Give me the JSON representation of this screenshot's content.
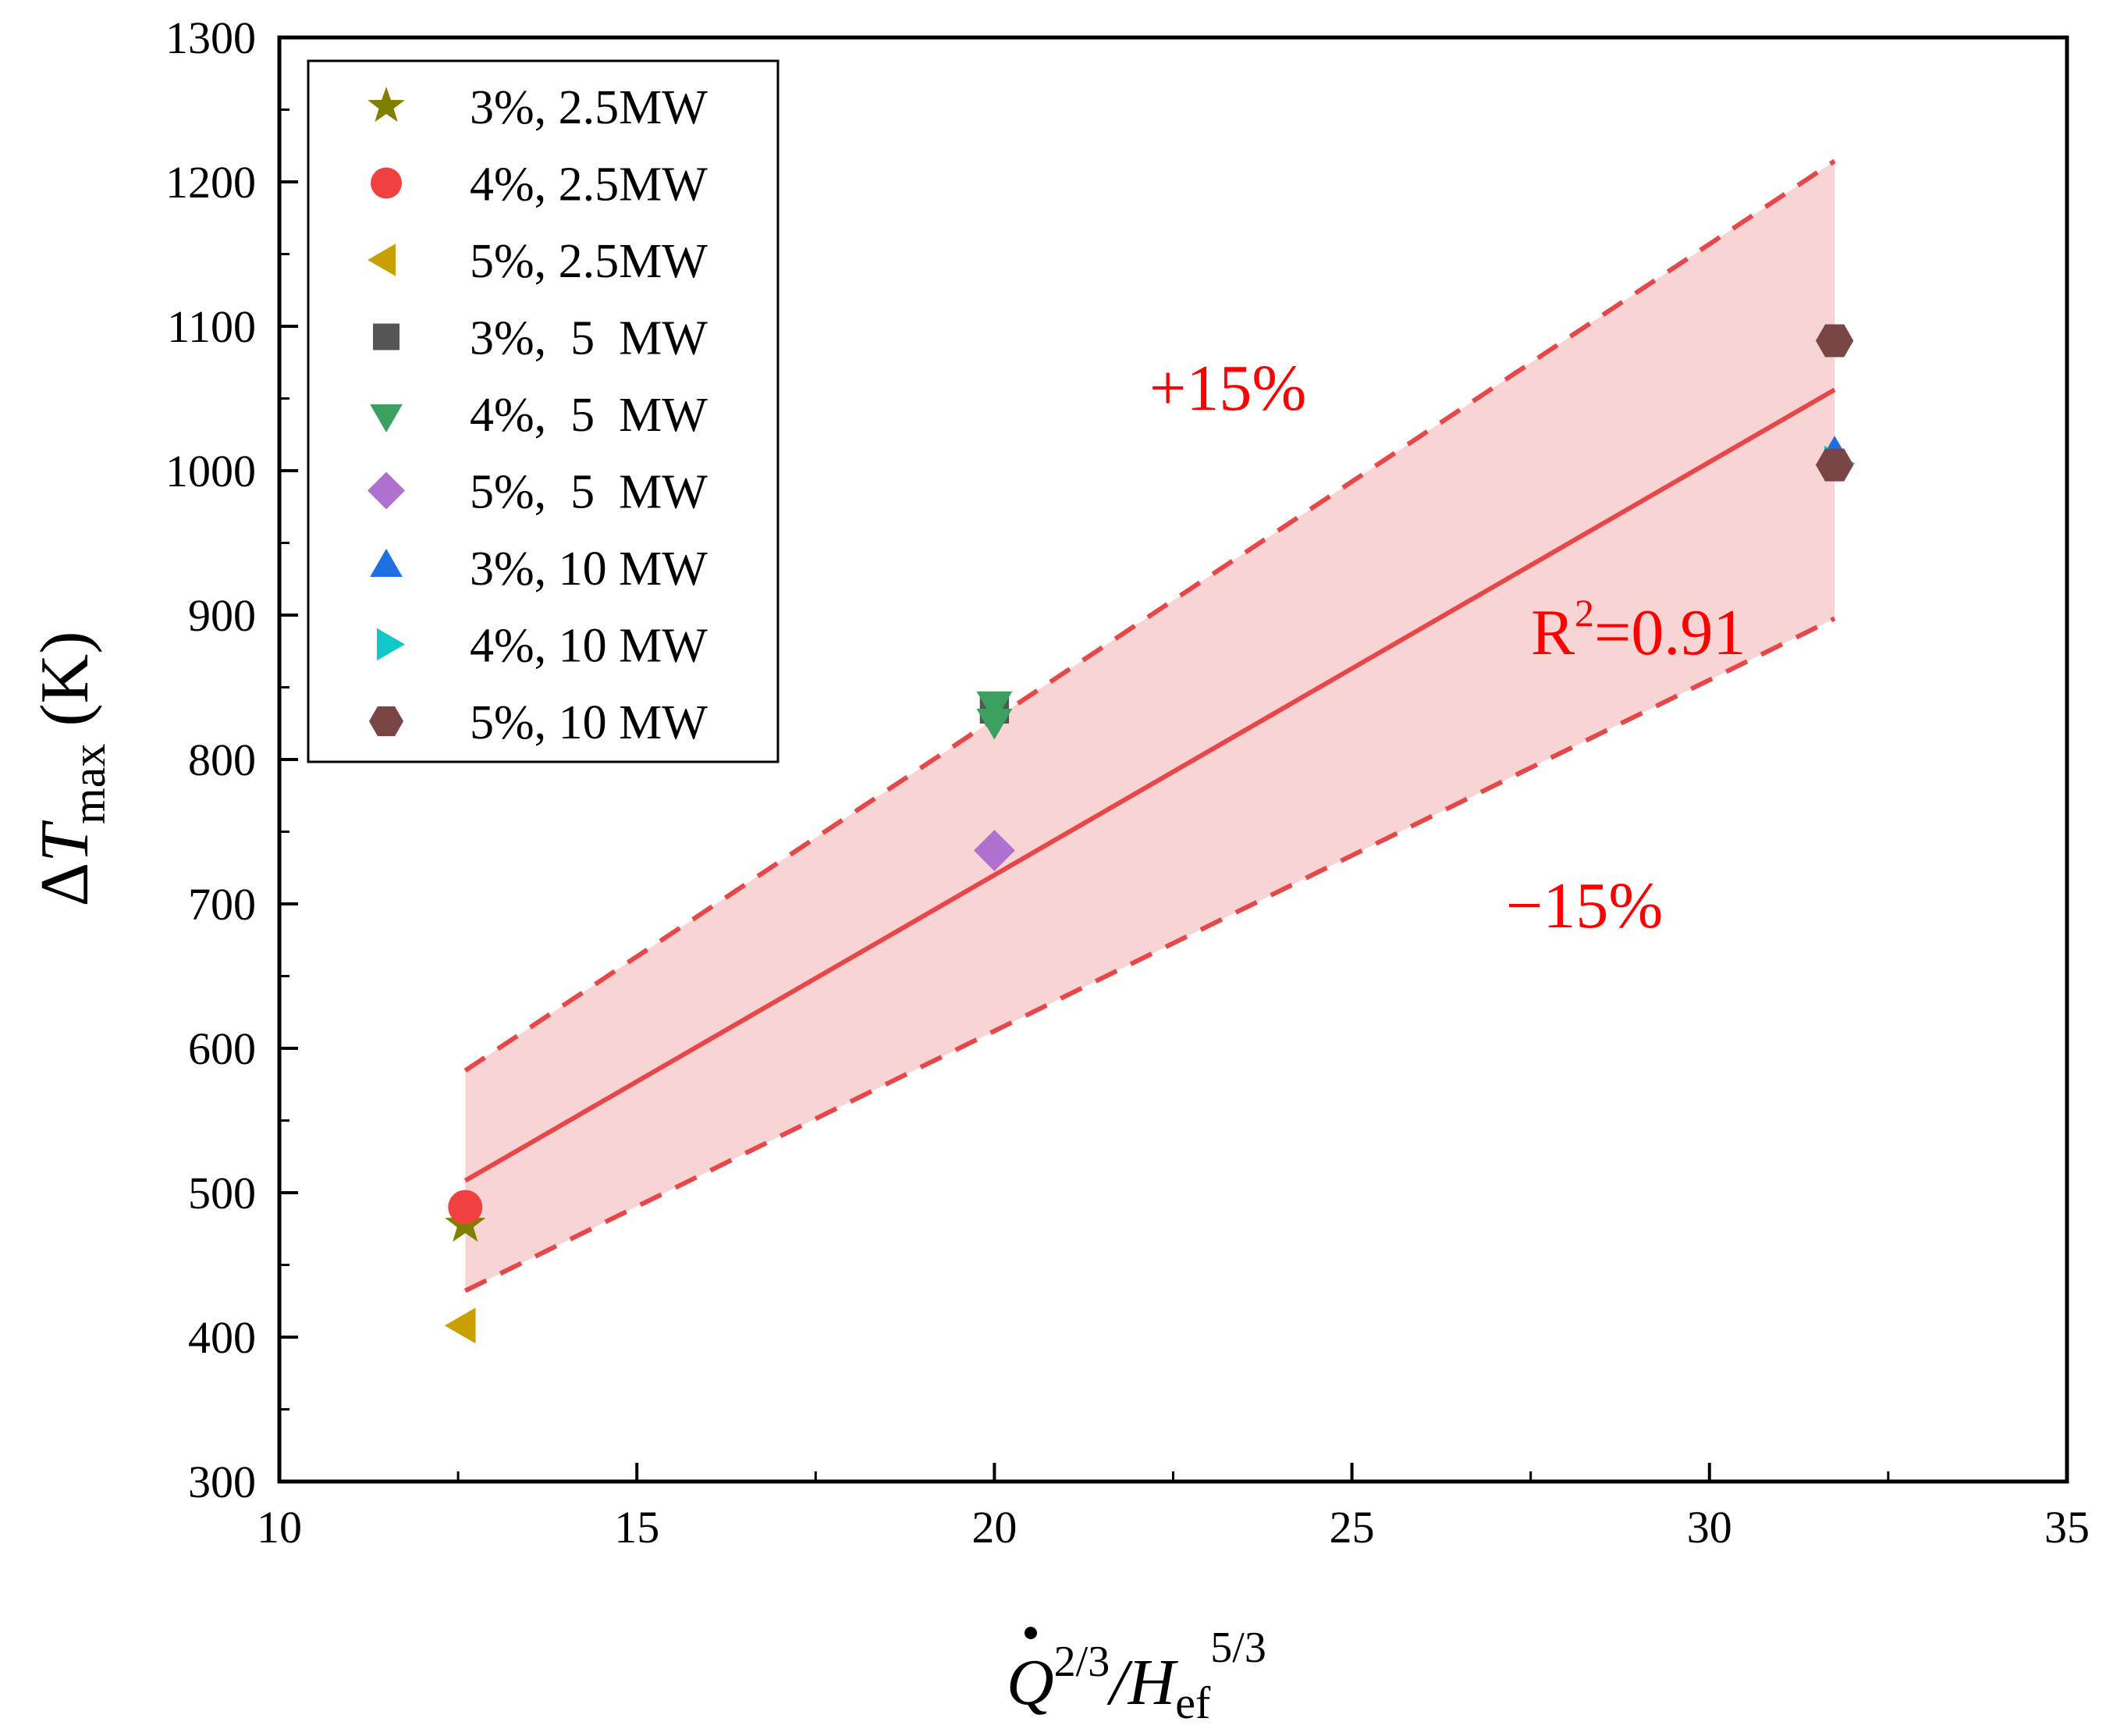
{
  "chart_data": {
    "type": "scatter",
    "title": "",
    "xlabel_parts": {
      "q": "Q",
      "q_exp": "2/3",
      "slash": "/H",
      "h_sub": "ef",
      "h_exp": "5/3"
    },
    "ylabel_parts": {
      "delta": "Δ",
      "t": "T",
      "sub": "max",
      "unit": " (K)"
    },
    "xlim": [
      10,
      35
    ],
    "ylim": [
      300,
      1300
    ],
    "xticks": [
      10,
      15,
      20,
      25,
      30,
      35
    ],
    "yticks": [
      300,
      400,
      500,
      600,
      700,
      800,
      900,
      1000,
      1100,
      1200,
      1300
    ],
    "fit": {
      "slope": 28.6,
      "intercept": 148,
      "x_range": [
        12.6,
        31.75
      ],
      "label_base": "R",
      "label_sup": "2",
      "label_rest": "=0.91",
      "color": "#e8474a"
    },
    "band": {
      "upper_label": "+15%",
      "lower_label": "−15%",
      "percent": 15,
      "fill": "#f8d4d4",
      "color": "#e8474a"
    },
    "series": [
      {
        "name": "3%, 2.5MW",
        "marker": "star",
        "color": "#808000",
        "points": [
          [
            12.6,
            478
          ]
        ]
      },
      {
        "name": "4%, 2.5MW",
        "marker": "circle",
        "color": "#f04040",
        "points": [
          [
            12.6,
            490
          ]
        ]
      },
      {
        "name": "5%, 2.5MW",
        "marker": "triangle-left",
        "color": "#c8a000",
        "points": [
          [
            12.6,
            408
          ]
        ]
      },
      {
        "name": "3%,  5  MW",
        "marker": "square",
        "color": "#555555",
        "points": [
          [
            20.0,
            835
          ]
        ]
      },
      {
        "name": "4%,  5  MW",
        "marker": "triangle-down",
        "color": "#3ba060",
        "points": [
          [
            20.0,
            840
          ],
          [
            20.0,
            828
          ]
        ]
      },
      {
        "name": "5%,  5  MW",
        "marker": "diamond",
        "color": "#b070d0",
        "points": [
          [
            20.0,
            737
          ]
        ]
      },
      {
        "name": "3%, 10 MW",
        "marker": "triangle-up",
        "color": "#1e70e0",
        "points": [
          [
            31.75,
            1010
          ]
        ]
      },
      {
        "name": "4%, 10 MW",
        "marker": "triangle-right",
        "color": "#10c8c8",
        "points": [
          [
            31.75,
            1005
          ]
        ]
      },
      {
        "name": "5%, 10 MW",
        "marker": "hexagon",
        "color": "#7a4545",
        "points": [
          [
            31.75,
            1090
          ],
          [
            31.75,
            1004
          ]
        ]
      }
    ],
    "legend_position": "top-left"
  }
}
